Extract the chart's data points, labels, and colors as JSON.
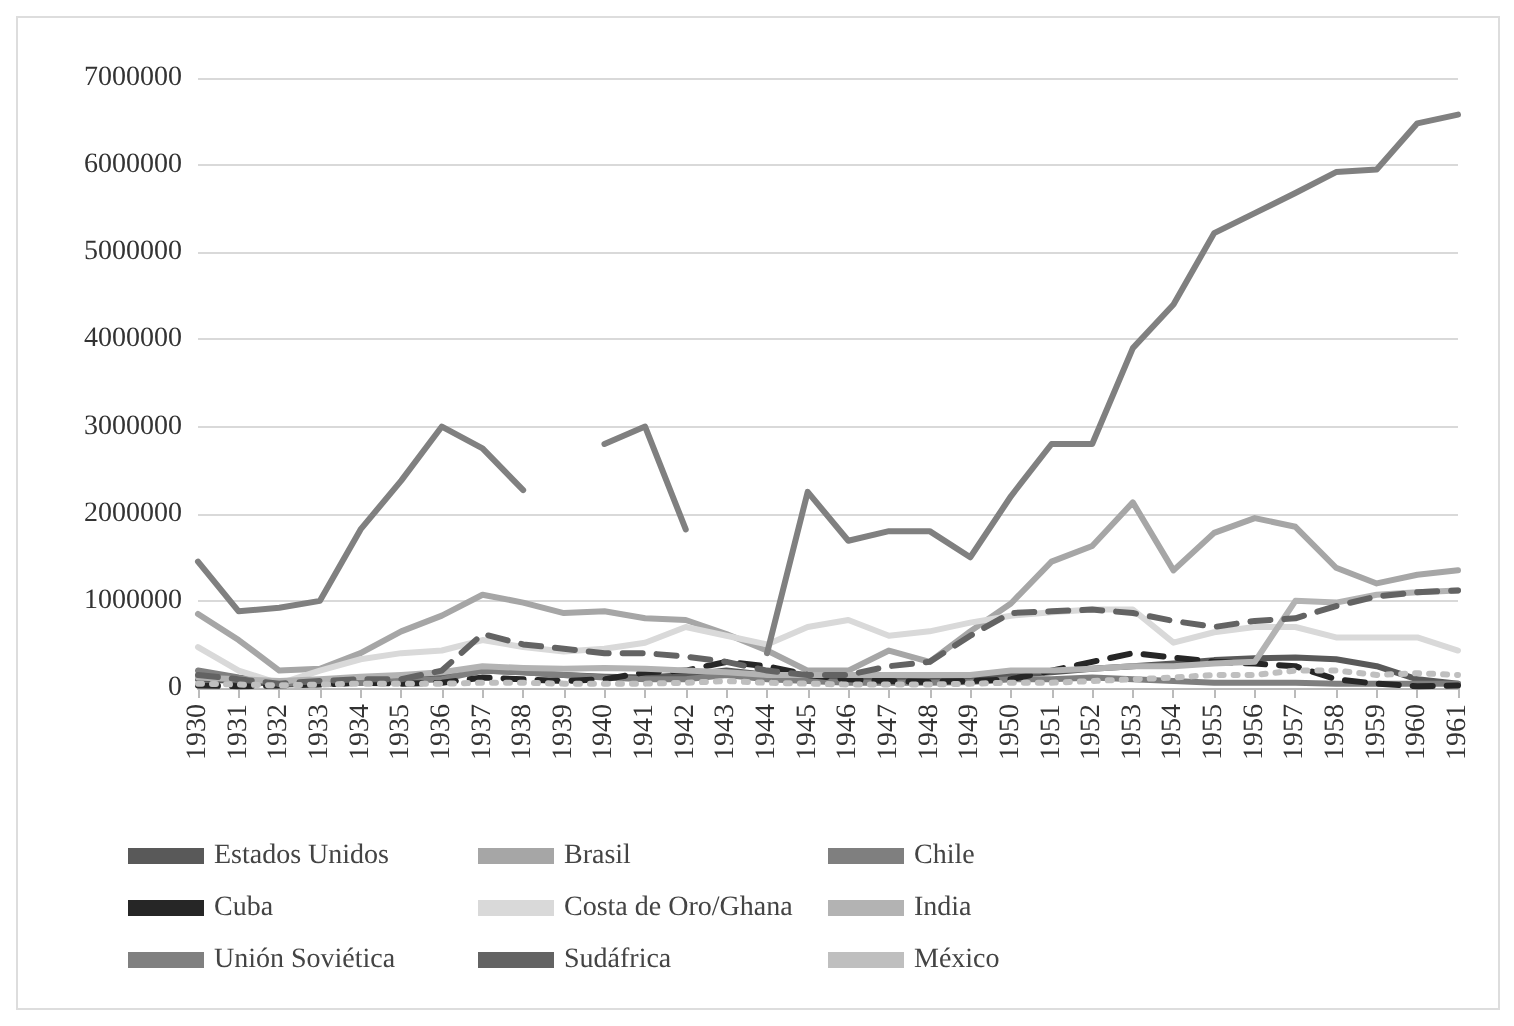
{
  "chart_data": {
    "type": "line",
    "categories": [
      "1930",
      "1931",
      "1932",
      "1933",
      "1934",
      "1935",
      "1936",
      "1937",
      "1938",
      "1939",
      "1940",
      "1941",
      "1942",
      "1943",
      "1944",
      "1945",
      "1946",
      "1947",
      "1948",
      "1949",
      "1950",
      "1951",
      "1952",
      "1953",
      "1954",
      "1955",
      "1956",
      "1957",
      "1958",
      "1959",
      "1960",
      "1961"
    ],
    "series": [
      {
        "name": "Estados Unidos",
        "color": "#595959",
        "line_style": "solid",
        "values": [
          100000,
          80000,
          40000,
          50000,
          60000,
          80000,
          120000,
          200000,
          180000,
          150000,
          130000,
          120000,
          150000,
          200000,
          150000,
          100000,
          80000,
          80000,
          90000,
          100000,
          150000,
          180000,
          220000,
          250000,
          280000,
          320000,
          340000,
          350000,
          330000,
          250000,
          100000,
          50000
        ]
      },
      {
        "name": "Brasil",
        "color": "#a6a6a6",
        "line_style": "solid",
        "values": [
          850000,
          550000,
          200000,
          220000,
          400000,
          650000,
          830000,
          1070000,
          980000,
          860000,
          880000,
          800000,
          780000,
          620000,
          430000,
          200000,
          200000,
          430000,
          300000,
          650000,
          970000,
          1450000,
          1630000,
          2130000,
          1350000,
          1780000,
          1950000,
          1850000,
          1380000,
          1200000,
          1300000,
          1350000
        ]
      },
      {
        "name": "Chile",
        "color": "#7f7f7f",
        "line_style": "solid",
        "values": [
          200000,
          120000,
          60000,
          50000,
          60000,
          80000,
          100000,
          200000,
          180000,
          150000,
          120000,
          100000,
          100000,
          150000,
          100000,
          80000,
          60000,
          60000,
          60000,
          70000,
          100000,
          100000,
          120000,
          100000,
          80000,
          60000,
          60000,
          60000,
          50000,
          50000,
          50000,
          50000
        ]
      },
      {
        "name": "Cuba",
        "color": "#262626",
        "line_style": "dashed",
        "values": [
          30000,
          20000,
          30000,
          40000,
          60000,
          50000,
          60000,
          120000,
          100000,
          80000,
          100000,
          180000,
          200000,
          300000,
          250000,
          150000,
          100000,
          80000,
          70000,
          80000,
          100000,
          200000,
          300000,
          400000,
          350000,
          300000,
          280000,
          250000,
          100000,
          50000,
          20000,
          30000
        ]
      },
      {
        "name": "Costa de Oro/Ghana",
        "color": "#d9d9d9",
        "line_style": "solid",
        "values": [
          470000,
          200000,
          50000,
          200000,
          330000,
          400000,
          430000,
          550000,
          470000,
          420000,
          450000,
          520000,
          700000,
          600000,
          500000,
          700000,
          780000,
          600000,
          650000,
          750000,
          830000,
          870000,
          900000,
          900000,
          520000,
          640000,
          700000,
          700000,
          580000,
          580000,
          580000,
          430000
        ]
      },
      {
        "name": "India",
        "color": "#b3b3b3",
        "line_style": "solid",
        "values": [
          120000,
          100000,
          80000,
          100000,
          130000,
          150000,
          180000,
          250000,
          230000,
          220000,
          230000,
          220000,
          200000,
          180000,
          150000,
          150000,
          150000,
          150000,
          150000,
          150000,
          200000,
          200000,
          220000,
          250000,
          250000,
          280000,
          300000,
          1000000,
          980000,
          1070000,
          1100000,
          1120000
        ]
      },
      {
        "name": "Unión Soviética",
        "color": "#808080",
        "line_style": "solid",
        "values": [
          1450000,
          880000,
          920000,
          1000000,
          1820000,
          2380000,
          3000000,
          2750000,
          2270000,
          null,
          2800000,
          3000000,
          1820000,
          null,
          400000,
          2250000,
          1690000,
          1800000,
          1800000,
          1500000,
          2200000,
          2800000,
          2800000,
          3900000,
          4400000,
          5220000,
          5450000,
          5680000,
          5920000,
          5950000,
          6480000,
          6580000
        ]
      },
      {
        "name": "Sudáfrica",
        "color": "#636363",
        "line_style": "dashed",
        "values": [
          150000,
          100000,
          50000,
          80000,
          100000,
          100000,
          200000,
          620000,
          500000,
          450000,
          400000,
          400000,
          360000,
          300000,
          200000,
          150000,
          150000,
          250000,
          300000,
          600000,
          860000,
          880000,
          900000,
          860000,
          770000,
          700000,
          770000,
          800000,
          940000,
          1050000,
          1100000,
          1120000
        ]
      },
      {
        "name": "México",
        "color": "#bfbfbf",
        "line_style": "dotted",
        "values": [
          50000,
          40000,
          30000,
          40000,
          50000,
          50000,
          50000,
          60000,
          60000,
          50000,
          50000,
          50000,
          60000,
          80000,
          60000,
          50000,
          40000,
          40000,
          40000,
          50000,
          60000,
          60000,
          80000,
          100000,
          120000,
          150000,
          150000,
          200000,
          200000,
          150000,
          170000,
          150000
        ]
      }
    ],
    "ylim": [
      0,
      7000000
    ],
    "yticks": [
      0,
      1000000,
      2000000,
      3000000,
      4000000,
      5000000,
      6000000,
      7000000
    ],
    "grid": "y",
    "legend": "bottom",
    "marker": "none"
  }
}
